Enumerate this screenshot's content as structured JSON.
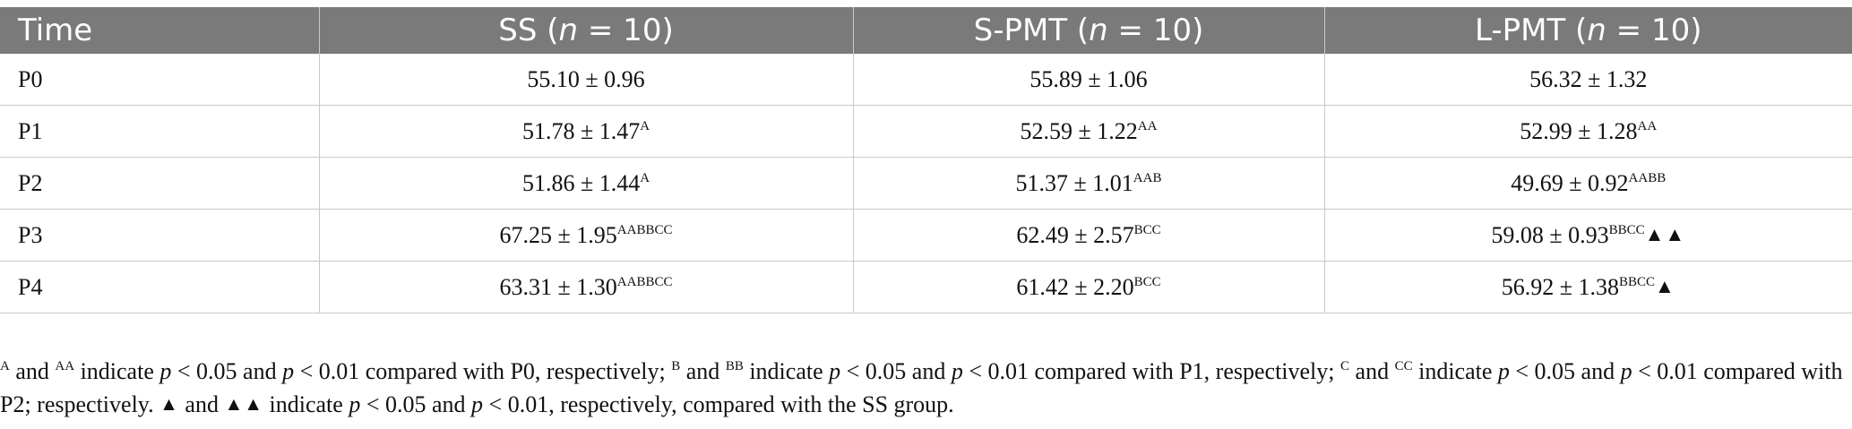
{
  "table": {
    "headers": [
      {
        "name": "Time",
        "n": ""
      },
      {
        "name": "SS (",
        "n": "n",
        "rest": " = 10)"
      },
      {
        "name": "S-PMT (",
        "n": "n",
        "rest": " = 10)"
      },
      {
        "name": "L-PMT (",
        "n": "n",
        "rest": " = 10)"
      }
    ],
    "rows": [
      {
        "time": "P0",
        "ss": "55.10 ± 0.96",
        "ss_sup": "",
        "spmt": "55.89 ± 1.06",
        "spmt_sup": "",
        "lpmt": "56.32 ± 1.32",
        "lpmt_sup": "",
        "lpmt_tri": ""
      },
      {
        "time": "P1",
        "ss": "51.78 ± 1.47",
        "ss_sup": "A",
        "spmt": "52.59 ± 1.22",
        "spmt_sup": "AA",
        "lpmt": "52.99 ± 1.28",
        "lpmt_sup": "AA",
        "lpmt_tri": ""
      },
      {
        "time": "P2",
        "ss": "51.86 ± 1.44",
        "ss_sup": "A",
        "spmt": "51.37 ± 1.01",
        "spmt_sup": "AAB",
        "lpmt": "49.69 ± 0.92",
        "lpmt_sup": "AABB",
        "lpmt_tri": ""
      },
      {
        "time": "P3",
        "ss": "67.25 ± 1.95",
        "ss_sup": "AABBCC",
        "spmt": "62.49 ± 2.57",
        "spmt_sup": "BCC",
        "lpmt": "59.08 ± 0.93",
        "lpmt_sup": "BBCC",
        "lpmt_tri": "▲▲"
      },
      {
        "time": "P4",
        "ss": "63.31 ± 1.30",
        "ss_sup": "AABBCC",
        "spmt": "61.42 ± 2.20",
        "spmt_sup": "BCC",
        "lpmt": "56.92 ± 1.38",
        "lpmt_sup": "BBCC",
        "lpmt_tri": "▲"
      }
    ]
  },
  "footnote": {
    "sup_A": "A",
    "t1": " and ",
    "sup_AA": "AA",
    "t2": " indicate ",
    "p1": "p",
    "t3": " < 0.05 and ",
    "p2": "p",
    "t4": " < 0.01 compared with P0, respectively; ",
    "sup_B": "B",
    "t5": " and ",
    "sup_BB": "BB",
    "t6": " indicate ",
    "p3": "p",
    "t7": " < 0.05 and ",
    "p4": "p",
    "t8": " < 0.01 compared with P1, respectively; ",
    "sup_C": "C",
    "t9": " and ",
    "sup_CC": "CC",
    "t10": " indicate ",
    "p5": "p",
    "t11": " < 0.05 and ",
    "p6": "p",
    "t12": " < 0.01 compared with P2; respectively. ",
    "tri1": "▲",
    "t13": " and ",
    "tri2": "▲▲",
    "t14": " indicate ",
    "p7": "p",
    "t15": " < 0.05 and ",
    "p8": "p",
    "t16": " < 0.01, respectively, compared with the SS group."
  }
}
